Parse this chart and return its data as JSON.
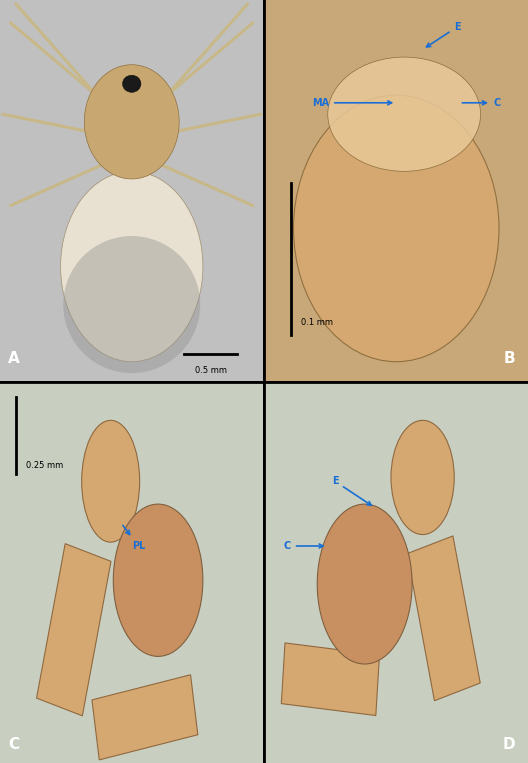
{
  "figure_size": [
    5.28,
    7.63
  ],
  "dpi": 100,
  "background_color": "#000000",
  "panels": [
    "A",
    "B",
    "C",
    "D"
  ],
  "ann_color": "#1a6fd4",
  "panel_label_fontsize": 11,
  "ann_fontsize": 7,
  "scale_fontsize": 6,
  "A_bg": "#c0c0c0",
  "B_bg": "#c8a878",
  "C_bg": "#c8cfc0",
  "D_bg": "#c8cfc0",
  "bulb_color": "#c89060",
  "seg_color": "#d4a870",
  "seg_edge": "#906840",
  "leg_color": "#c8b888",
  "ceph_color": "#c8a870",
  "abdomen_color": "#e8e0d0"
}
